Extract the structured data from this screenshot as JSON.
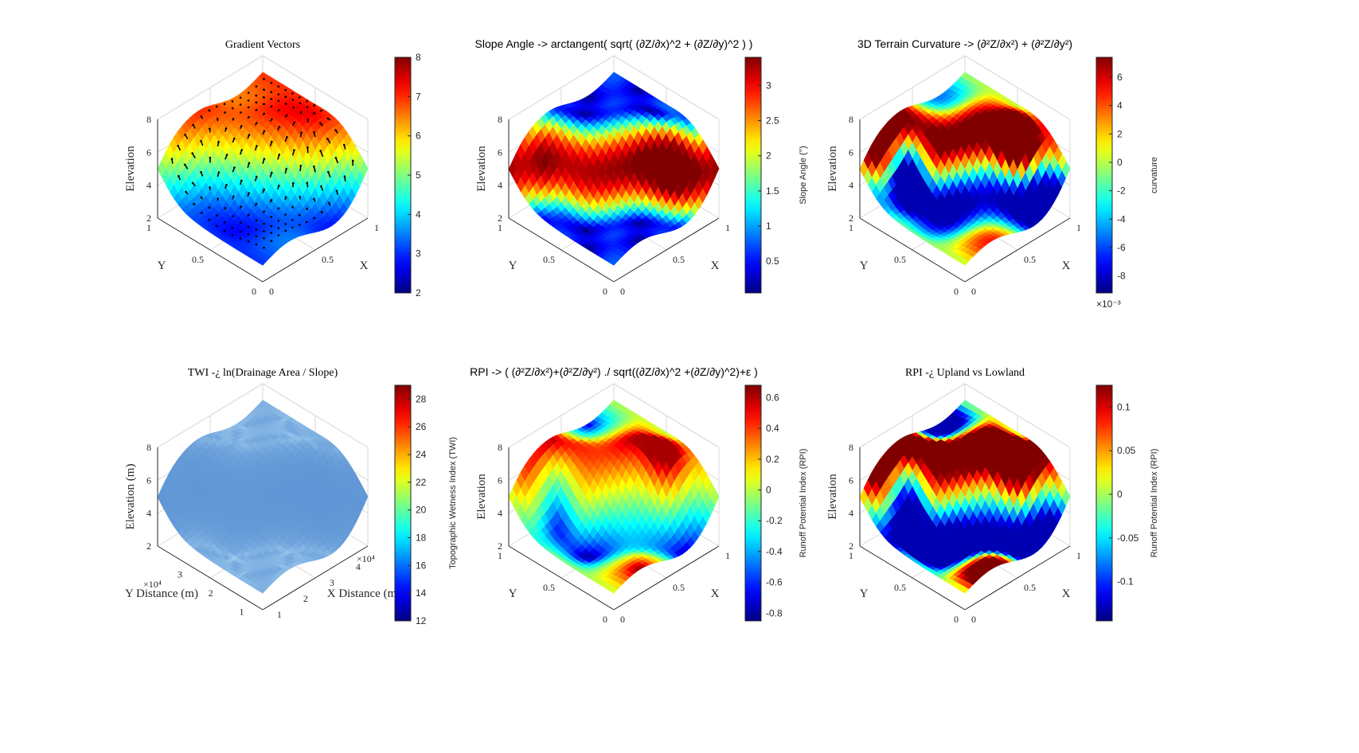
{
  "figure": {
    "background": "#ffffff"
  },
  "chart_data": [
    {
      "type": "surface3d",
      "title": "Gradient Vectors",
      "title_font": "serif",
      "xlabel": "X",
      "ylabel": "Y",
      "zlabel": "Elevation",
      "label_font": "serif",
      "xticks": [
        "0",
        "0.5",
        "1"
      ],
      "yticks": [
        "0",
        "0.5",
        "1"
      ],
      "zticks": [
        "2",
        "4",
        "6",
        "8"
      ],
      "exponent_label": "",
      "shading": "elevation",
      "overlay": "gradient-arrows",
      "colormap": "jet",
      "colorbar": {
        "label": "",
        "ticks": [
          "2",
          "3",
          "4",
          "5",
          "6",
          "7",
          "8"
        ],
        "range": [
          2,
          8
        ],
        "exponent": ""
      },
      "grid": true
    },
    {
      "type": "surface3d",
      "title": "Slope Angle -> arctangent( sqrt( (∂Z/∂x)^2 + (∂Z/∂y)^2 ) )",
      "title_font": "sans",
      "xlabel": "X",
      "ylabel": "Y",
      "zlabel": "Elevation",
      "label_font": "serif",
      "xticks": [
        "0",
        "0.5",
        "1"
      ],
      "yticks": [
        "0",
        "0.5",
        "1"
      ],
      "zticks": [
        "2",
        "4",
        "6",
        "8"
      ],
      "exponent_label": "",
      "shading": "slope",
      "colormap": "jet",
      "colorbar": {
        "label": "Slope Angle (°)",
        "ticks": [
          "0.5",
          "1",
          "1.5",
          "2",
          "2.5",
          "3"
        ],
        "range": [
          0.05,
          3.4
        ],
        "exponent": ""
      },
      "grid": true
    },
    {
      "type": "surface3d",
      "title": "3D Terrain Curvature -> (∂²Z/∂x²) + (∂²Z/∂y²)",
      "title_font": "sans",
      "xlabel": "X",
      "ylabel": "Y",
      "zlabel": "Elevation",
      "label_font": "serif",
      "xticks": [
        "0",
        "0.5",
        "1"
      ],
      "yticks": [
        "0",
        "0.5",
        "1"
      ],
      "zticks": [
        "2",
        "4",
        "6",
        "8"
      ],
      "exponent_label": "",
      "shading": "curvature",
      "colormap": "jet",
      "colorbar": {
        "label": "curvature",
        "ticks": [
          "-8",
          "-6",
          "-4",
          "-2",
          "0",
          "2",
          "4",
          "6"
        ],
        "range": [
          -9.2,
          7.4
        ],
        "exponent": "×10⁻³"
      },
      "grid": true
    },
    {
      "type": "surface3d",
      "title": "TWI -¿ ln(Drainage Area / Slope)",
      "title_font": "serif",
      "xlabel": "X Distance (m)",
      "ylabel": "Y Distance (m)",
      "zlabel": "Elevation (m)",
      "label_font": "serif",
      "xticks": [
        "1",
        "2",
        "3",
        "4"
      ],
      "yticks": [
        "1",
        "2",
        "3"
      ],
      "zticks": [
        "2",
        "4",
        "6",
        "8"
      ],
      "exponent_label": "×10⁴",
      "shading": "twi",
      "colormap": "jet",
      "colorbar": {
        "label": "Topographic Wetness Index (TWI)",
        "ticks": [
          "12",
          "14",
          "16",
          "18",
          "20",
          "22",
          "24",
          "26",
          "28"
        ],
        "range": [
          12,
          29
        ],
        "exponent": ""
      },
      "grid": true
    },
    {
      "type": "surface3d",
      "title": "RPI -> ( (∂²Z/∂x²)+(∂²Z/∂y²) ./ sqrt((∂Z/∂x)^2 +(∂Z/∂y)^2)+ε )",
      "title_font": "sans",
      "xlabel": "X",
      "ylabel": "Y",
      "zlabel": "Elevation",
      "label_font": "serif",
      "xticks": [
        "0",
        "0.5",
        "1"
      ],
      "yticks": [
        "0",
        "0.5",
        "1"
      ],
      "zticks": [
        "2",
        "4",
        "6",
        "8"
      ],
      "exponent_label": "",
      "shading": "rpi",
      "colormap": "jet",
      "colorbar": {
        "label": "Runoff Potential Index (RPI)",
        "ticks": [
          "-0.8",
          "-0.6",
          "-0.4",
          "-0.2",
          "0",
          "0.2",
          "0.4",
          "0.6"
        ],
        "range": [
          -0.85,
          0.68
        ],
        "exponent": ""
      },
      "grid": true
    },
    {
      "type": "surface3d",
      "title": "RPI -¿ Upland vs Lowland",
      "title_font": "serif",
      "xlabel": "X",
      "ylabel": "Y",
      "zlabel": "Elevation",
      "label_font": "serif",
      "xticks": [
        "0",
        "0.5",
        "1"
      ],
      "yticks": [
        "0",
        "0.5",
        "1"
      ],
      "zticks": [
        "2",
        "4",
        "6",
        "8"
      ],
      "exponent_label": "",
      "shading": "rpi2",
      "colormap": "jet",
      "colorbar": {
        "label": "Runoff Potential Index (RPI)",
        "ticks": [
          "-0.1",
          "-0.05",
          "0",
          "0.05",
          "0.1"
        ],
        "range": [
          -0.145,
          0.125
        ],
        "exponent": ""
      },
      "grid": true
    }
  ]
}
